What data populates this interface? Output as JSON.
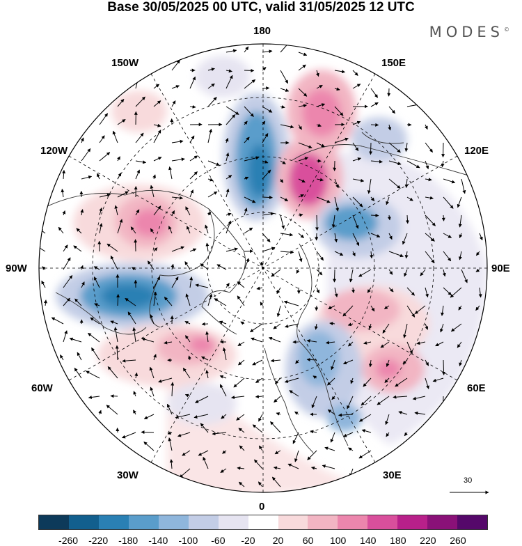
{
  "title": "Base 30/05/2025 00 UTC, valid 31/05/2025 12 UTC",
  "brand": "MODES",
  "brand_mark": "©",
  "longitude_labels": {
    "top": "180",
    "bottom": "0",
    "left": "90W",
    "right": "90E",
    "upper_left_1": "150W",
    "upper_left_2": "120W",
    "upper_right_1": "150E",
    "upper_right_2": "120E",
    "lower_left_1": "60W",
    "lower_left_2": "30W",
    "lower_right_1": "60E",
    "lower_right_2": "30E"
  },
  "vector_reference": "30",
  "colorbar": {
    "ticks": [
      "-260",
      "-220",
      "-180",
      "-140",
      "-100",
      "-60",
      "-20",
      "20",
      "60",
      "100",
      "140",
      "180",
      "220",
      "260"
    ],
    "colors": [
      "#0d3a5a",
      "#125f8e",
      "#2a80b4",
      "#5a9dcb",
      "#8fb6dc",
      "#c3cde6",
      "#e6e4f1",
      "#ffffff",
      "#f8dadc",
      "#f2b5c3",
      "#ec86ad",
      "#d94f9c",
      "#b8208a",
      "#8a1178",
      "#55086a"
    ]
  },
  "anomaly_centers": [
    {
      "sign": "negative",
      "strength": "strong",
      "region": "north pacific near 180"
    },
    {
      "sign": "positive",
      "strength": "strong",
      "region": "east siberia"
    },
    {
      "sign": "positive",
      "strength": "strong",
      "region": "northwest pacific"
    },
    {
      "sign": "negative",
      "strength": "moderate",
      "region": "central siberia"
    },
    {
      "sign": "positive",
      "strength": "moderate",
      "region": "western canada"
    },
    {
      "sign": "negative",
      "strength": "strong",
      "region": "hudson bay / labrador"
    },
    {
      "sign": "positive",
      "strength": "moderate",
      "region": "north atlantic"
    },
    {
      "sign": "negative",
      "strength": "moderate",
      "region": "scandinavia"
    },
    {
      "sign": "positive",
      "strength": "moderate",
      "region": "west siberia / caspian"
    }
  ]
}
